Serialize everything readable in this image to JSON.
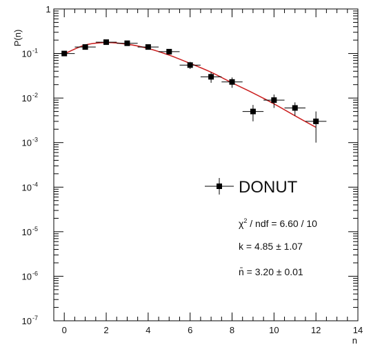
{
  "chart_data": {
    "type": "scatter",
    "xlabel": "n",
    "ylabel": "P(n)",
    "xlim": [
      -0.5,
      14
    ],
    "ylim": [
      1e-07,
      1
    ],
    "yscale": "log",
    "grid": false,
    "x_ticks": [
      0,
      2,
      4,
      6,
      8,
      10,
      12,
      14
    ],
    "x_tick_labels": [
      "0",
      "2",
      "4",
      "6",
      "8",
      "10",
      "12",
      "14"
    ],
    "y_tick_exponents": [
      -7,
      -6,
      -5,
      -4,
      -3,
      -2,
      -1,
      0
    ],
    "y_tick_labels": [
      "10",
      "10",
      "10",
      "10",
      "10",
      "10",
      "10",
      "1"
    ],
    "y_tick_superscripts": [
      "-7",
      "-6",
      "-5",
      "-4",
      "-3",
      "-2",
      "-1",
      ""
    ],
    "series": [
      {
        "name": "DONUT",
        "color": "#000000",
        "x": [
          0,
          1,
          2,
          3,
          4,
          5,
          6,
          7,
          8,
          9,
          10,
          11,
          12
        ],
        "y": [
          0.1,
          0.14,
          0.18,
          0.17,
          0.14,
          0.11,
          0.055,
          0.03,
          0.023,
          0.005,
          0.009,
          0.006,
          0.003
        ],
        "x_err": [
          0.5,
          0.5,
          0.5,
          0.5,
          0.5,
          0.5,
          0.5,
          0.5,
          0.5,
          0.5,
          0.5,
          0.5,
          0.5
        ],
        "y_err_low": [
          0.012,
          0.015,
          0.015,
          0.015,
          0.014,
          0.014,
          0.01,
          0.008,
          0.006,
          0.002,
          0.003,
          0.002,
          0.002
        ],
        "y_err_high": [
          0.012,
          0.015,
          0.015,
          0.015,
          0.014,
          0.014,
          0.01,
          0.008,
          0.006,
          0.002,
          0.003,
          0.002,
          0.002
        ]
      }
    ],
    "fit": {
      "color": "#cc2222",
      "x": [
        0,
        1,
        2,
        3,
        4,
        5,
        6,
        7,
        8,
        9,
        10,
        11,
        12
      ],
      "y": [
        0.098,
        0.155,
        0.176,
        0.162,
        0.13,
        0.092,
        0.06,
        0.038,
        0.022,
        0.013,
        0.0074,
        0.004,
        0.0022
      ]
    },
    "legend": {
      "position": "center-right",
      "entry": "DONUT",
      "stats": [
        {
          "label": "χ² / ndf = 6.60 / 10",
          "pre": "χ",
          "sup": "2",
          "post": " / ndf = 6.60 / 10"
        },
        {
          "label": "k = 4.85 ± 1.07",
          "pre": "k = 4.85 ± 1.07",
          "sup": "",
          "post": ""
        },
        {
          "label": "n̄ = 3.20 ± 0.01",
          "pre": "n̄ = 3.20 ± 0.01",
          "sup": "",
          "post": ""
        }
      ]
    }
  }
}
